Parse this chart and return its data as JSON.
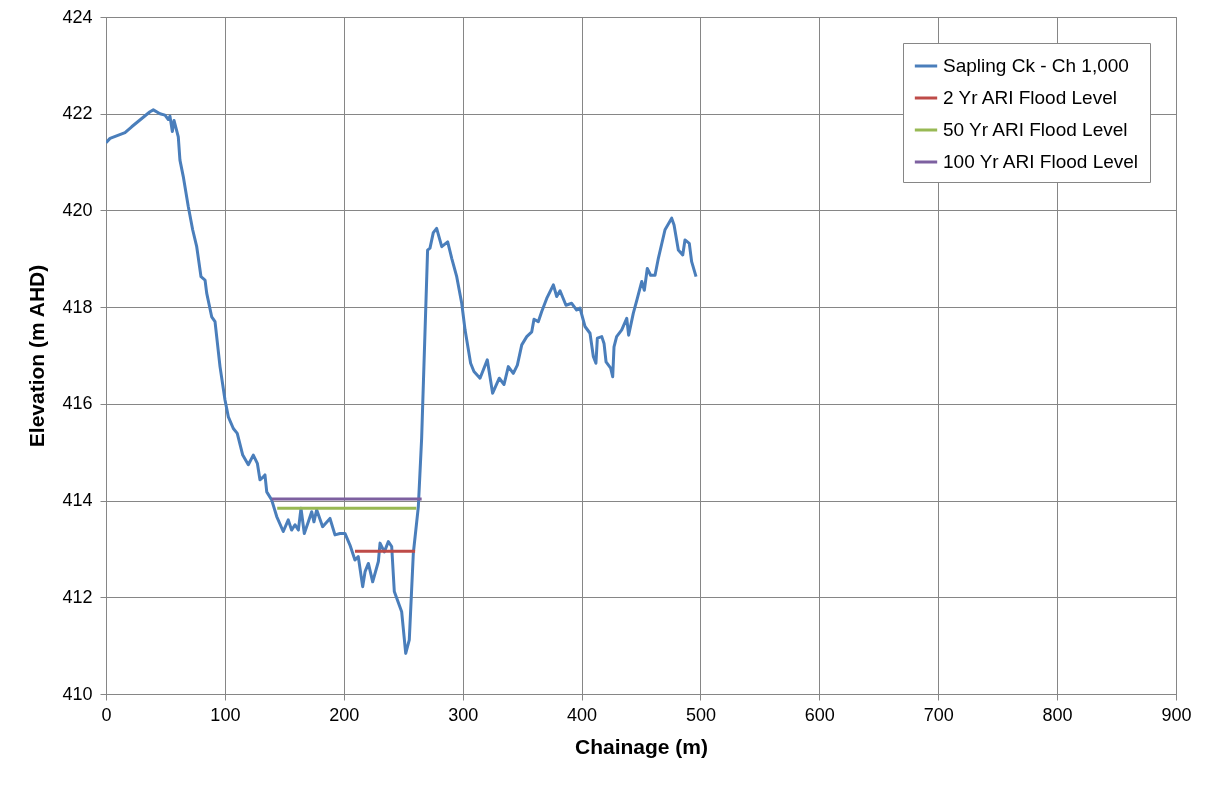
{
  "chart_data": {
    "type": "line",
    "xlabel": "Chainage (m)",
    "ylabel": "Elevation (m AHD)",
    "xlim": [
      0,
      900
    ],
    "xticks": [
      0,
      100,
      200,
      300,
      400,
      500,
      600,
      700,
      800,
      900
    ],
    "ylim": [
      410,
      424
    ],
    "yticks": [
      410,
      412,
      414,
      416,
      418,
      420,
      422,
      424
    ],
    "grid": true,
    "legend": "top right",
    "line_style": "solid",
    "series": [
      {
        "name": "Sapling Ck -  Ch 1,000",
        "color": "#4a7ebb",
        "x": [
          0,
          3.4,
          16,
          21.6,
          37,
          39.8,
          45.4,
          49.6,
          52.4,
          53.8,
          55.8,
          57.2,
          60.8,
          62.2,
          65,
          69.2,
          72.9,
          76.3,
          79.9,
          83.3,
          84.7,
          88.9,
          91.7,
          95.9,
          100.1,
          102.9,
          107.1,
          110.4,
          115,
          119.7,
          123.9,
          127.3,
          129.5,
          132.3,
          133.7,
          135.2,
          139.4,
          143.6,
          149.1,
          153.3,
          156.1,
          159,
          161.8,
          164,
          166.8,
          170.2,
          173,
          174.9,
          177.2,
          182.2,
          188.4,
          192.6,
          196.8,
          201,
          205.2,
          209.4,
          212.2,
          215.9,
          217.9,
          220.7,
          224.3,
          229.1,
          230.5,
          234.1,
          237.5,
          240.3,
          242.5,
          248.7,
          252.1,
          255.1,
          258.5,
          262.7,
          265.5,
          270.5,
          272.5,
          275.3,
          278.1,
          282.4,
          287.4,
          290.8,
          295,
          299.2,
          302,
          306.7,
          309.5,
          314.6,
          320.7,
          325.2,
          330.8,
          334.8,
          338.4,
          342.6,
          346,
          349.7,
          353.9,
          358.1,
          360,
          363.6,
          366.5,
          370.7,
          376.3,
          379.1,
          381.9,
          386.9,
          391.7,
          395.9,
          398.7,
          402.9,
          407.1,
          409.9,
          412.1,
          413.3,
          417,
          418.9,
          420.6,
          424.5,
          426.2,
          427.3,
          429.5,
          433.8,
          438,
          439.6,
          443.5,
          446.9,
          450.6,
          452.8,
          455.3,
          458.1,
          461.8,
          464.6,
          470.2,
          475.8,
          477.8,
          481.4,
          485.1,
          487,
          490.6,
          492.6,
          496.3
        ],
        "values": [
          421.4,
          421.49,
          421.61,
          421.73,
          422.04,
          422.08,
          422,
          421.97,
          421.88,
          421.95,
          421.63,
          421.86,
          421.52,
          421.04,
          420.7,
          420.08,
          419.6,
          419.25,
          418.63,
          418.56,
          418.29,
          417.8,
          417.7,
          416.77,
          416.08,
          415.73,
          415.49,
          415.39,
          414.94,
          414.74,
          414.94,
          414.77,
          414.43,
          414.49,
          414.53,
          414.18,
          414.01,
          413.67,
          413.36,
          413.6,
          413.39,
          413.5,
          413.39,
          413.84,
          413.32,
          413.56,
          413.77,
          413.56,
          413.81,
          413.46,
          413.63,
          413.29,
          413.32,
          413.32,
          413.08,
          412.77,
          412.84,
          412.22,
          412.53,
          412.7,
          412.32,
          412.74,
          413.12,
          412.94,
          413.15,
          413.05,
          412.12,
          411.7,
          410.84,
          411.12,
          412.91,
          413.87,
          415.29,
          419.18,
          419.22,
          419.54,
          419.63,
          419.25,
          419.35,
          419.01,
          418.63,
          418.08,
          417.53,
          416.84,
          416.67,
          416.53,
          416.91,
          416.22,
          416.53,
          416.4,
          416.77,
          416.63,
          416.8,
          417.22,
          417.39,
          417.49,
          417.75,
          417.7,
          417.91,
          418.18,
          418.46,
          418.22,
          418.34,
          418.04,
          418.08,
          417.94,
          417.98,
          417.6,
          417.46,
          416.98,
          416.84,
          417.36,
          417.39,
          417.25,
          416.87,
          416.74,
          416.56,
          417.18,
          417.39,
          417.53,
          417.77,
          417.42,
          417.87,
          418.18,
          418.53,
          418.35,
          418.8,
          418.66,
          418.66,
          419.01,
          419.6,
          419.84,
          419.7,
          419.18,
          419.08,
          419.39,
          419.32,
          418.94,
          418.63
        ]
      },
      {
        "name": "2 Yr ARI Flood Level",
        "color": "#be4b48",
        "x": [
          209.4,
          260
        ],
        "values": [
          412.95,
          412.95
        ]
      },
      {
        "name": "50 Yr ARI Flood Level",
        "color": "#98b954",
        "x": [
          144,
          261
        ],
        "values": [
          413.84,
          413.84
        ]
      },
      {
        "name": "100 Yr ARI Flood Level",
        "color": "#7d60a0",
        "x": [
          139.4,
          265.5
        ],
        "values": [
          414.03,
          414.03
        ]
      }
    ]
  }
}
